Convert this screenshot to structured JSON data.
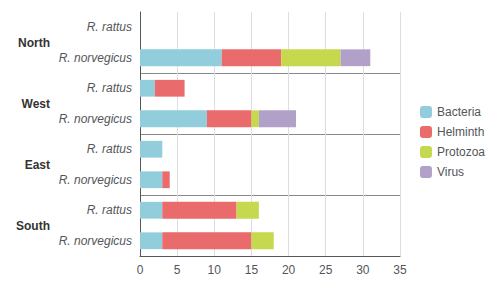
{
  "chart_data": {
    "type": "bar",
    "orientation": "horizontal",
    "stacked": true,
    "categories": [
      "R. rattus",
      "R. norvegicus",
      "R. rattus",
      "R. norvegicus",
      "R. rattus",
      "R. norvegicus",
      "R. rattus",
      "R. norvegicus"
    ],
    "category_groups": [
      "North",
      "North",
      "West",
      "West",
      "East",
      "East",
      "South",
      "South"
    ],
    "series": [
      {
        "name": "Bacteria",
        "color": "#92CDDC",
        "values": [
          0,
          11,
          2,
          9,
          3,
          3,
          3,
          3
        ]
      },
      {
        "name": "Helminth",
        "color": "#E96B6B",
        "values": [
          0,
          8,
          4,
          6,
          0,
          1,
          10,
          12
        ]
      },
      {
        "name": "Protozoa",
        "color": "#C6D94E",
        "values": [
          0,
          8,
          0,
          1,
          0,
          0,
          3,
          3
        ]
      },
      {
        "name": "Virus",
        "color": "#B1A0C7",
        "values": [
          0,
          4,
          0,
          5,
          0,
          0,
          0,
          0
        ]
      }
    ],
    "xlim": [
      0,
      35
    ],
    "xticks": [
      0,
      5,
      10,
      15,
      20,
      25,
      30,
      35
    ],
    "grid": true,
    "legend": "right"
  }
}
